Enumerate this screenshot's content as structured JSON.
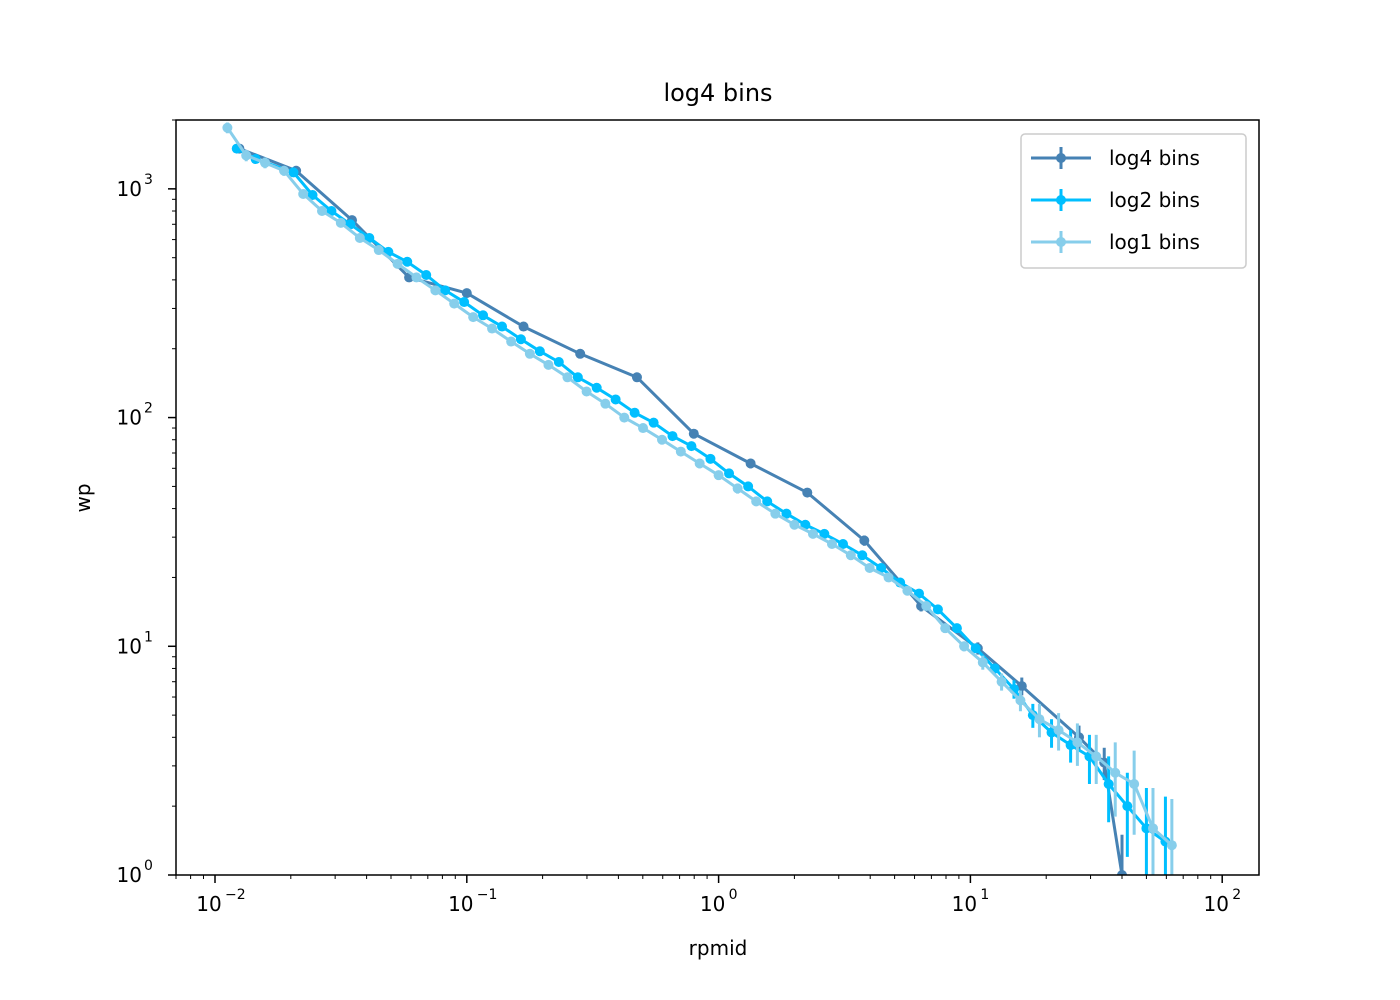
{
  "chart_data": {
    "type": "line",
    "title": "log4 bins",
    "xlabel": "rpmid",
    "ylabel": "wp",
    "xscale": "log",
    "yscale": "log",
    "xlim": [
      0.007,
      140
    ],
    "ylim": [
      1,
      2000
    ],
    "x_ticks": [
      {
        "base": "10",
        "exp": "−2",
        "value": 0.01
      },
      {
        "base": "10",
        "exp": "−1",
        "value": 0.1
      },
      {
        "base": "10",
        "exp": "0",
        "value": 1
      },
      {
        "base": "10",
        "exp": "1",
        "value": 10
      },
      {
        "base": "10",
        "exp": "2",
        "value": 100
      }
    ],
    "y_ticks": [
      {
        "base": "10",
        "exp": "0",
        "value": 1
      },
      {
        "base": "10",
        "exp": "1",
        "value": 10
      },
      {
        "base": "10",
        "exp": "2",
        "value": 100
      },
      {
        "base": "10",
        "exp": "3",
        "value": 1000
      }
    ],
    "grid": false,
    "legend_position": "top-right",
    "series": [
      {
        "name": "log4 bins",
        "color": "#4682b4",
        "x": [
          0.0125,
          0.021,
          0.035,
          0.059,
          0.1,
          0.168,
          0.282,
          0.474,
          0.797,
          1.34,
          2.25,
          3.79,
          6.37,
          10.7,
          16.0,
          27.0,
          34.0,
          40.0
        ],
        "y": [
          1500,
          1200,
          730,
          410,
          350,
          250,
          190,
          150,
          85,
          63,
          47,
          29,
          15,
          9.8,
          6.7,
          4.0,
          3.1,
          1.0
        ],
        "yerr": [
          70,
          60,
          25,
          14,
          10,
          8,
          6,
          5,
          4,
          3,
          2,
          1.5,
          0.8,
          0.6,
          0.6,
          0.5,
          0.5,
          0.5
        ]
      },
      {
        "name": "log2 bins",
        "color": "#00bfff",
        "x": [
          0.0122,
          0.0145,
          0.0205,
          0.0244,
          0.029,
          0.0345,
          0.041,
          0.0488,
          0.058,
          0.069,
          0.082,
          0.0976,
          0.116,
          0.138,
          0.164,
          0.195,
          0.232,
          0.276,
          0.328,
          0.39,
          0.464,
          0.552,
          0.656,
          0.78,
          0.928,
          1.1,
          1.31,
          1.56,
          1.86,
          2.21,
          2.63,
          3.12,
          3.72,
          4.42,
          5.26,
          6.25,
          7.43,
          8.84,
          10.5,
          12.5,
          14.9,
          17.7,
          21.0,
          25.0,
          29.7,
          35.4,
          42.0,
          50.0,
          59.5
        ],
        "y": [
          1500,
          1350,
          1180,
          940,
          800,
          700,
          610,
          530,
          480,
          420,
          360,
          320,
          280,
          250,
          220,
          195,
          175,
          150,
          135,
          120,
          105,
          95,
          83,
          75,
          66,
          57,
          50,
          43,
          38,
          34,
          31,
          28,
          25,
          22,
          19,
          17,
          14.5,
          12.0,
          9.8,
          8.0,
          6.5,
          5.0,
          4.2,
          3.7,
          3.3,
          2.5,
          2.0,
          1.6,
          1.4
        ],
        "yerr": [
          60,
          50,
          40,
          25,
          20,
          18,
          15,
          12,
          10,
          9,
          8,
          7,
          6,
          6,
          5,
          5,
          4,
          4,
          3,
          3,
          3,
          3,
          3,
          2.5,
          2.5,
          2.5,
          2,
          1.5,
          1.2,
          1.0,
          1.0,
          0.8,
          0.7,
          0.6,
          0.5,
          0.5,
          0.5,
          0.4,
          0.4,
          0.4,
          0.6,
          0.6,
          0.6,
          0.6,
          0.8,
          0.8,
          0.8,
          0.8,
          0.8
        ]
      },
      {
        "name": "log1 bins",
        "color": "#87ceeb",
        "x": [
          0.0112,
          0.0133,
          0.0158,
          0.0188,
          0.0224,
          0.0266,
          0.0316,
          0.0376,
          0.0447,
          0.0531,
          0.0631,
          0.075,
          0.0891,
          0.106,
          0.126,
          0.15,
          0.178,
          0.211,
          0.251,
          0.299,
          0.355,
          0.422,
          0.501,
          0.596,
          0.708,
          0.841,
          1.0,
          1.19,
          1.41,
          1.68,
          2.0,
          2.37,
          2.82,
          3.35,
          3.98,
          4.73,
          5.62,
          6.68,
          7.94,
          9.44,
          11.2,
          13.3,
          15.8,
          18.8,
          22.4,
          26.6,
          31.6,
          37.6,
          44.7,
          53.1,
          63.1
        ],
        "y": [
          1850,
          1400,
          1300,
          1200,
          950,
          800,
          710,
          610,
          540,
          470,
          410,
          360,
          315,
          275,
          245,
          215,
          190,
          170,
          150,
          130,
          115,
          100,
          90,
          80,
          71,
          63,
          56,
          49,
          43,
          38,
          34,
          31,
          28,
          25,
          22,
          20,
          17.5,
          15,
          12,
          10,
          8.5,
          7.0,
          5.8,
          4.8,
          4.3,
          3.8,
          3.3,
          2.8,
          2.5,
          1.6,
          1.35
        ],
        "yerr": [
          100,
          80,
          70,
          60,
          30,
          20,
          18,
          15,
          12,
          10,
          9,
          8,
          7,
          6,
          6,
          5,
          5,
          4,
          4,
          3,
          3,
          3,
          3,
          3,
          3,
          3,
          2.5,
          2.5,
          2,
          1.5,
          1.2,
          1.0,
          1.0,
          0.8,
          0.7,
          0.6,
          0.6,
          0.5,
          0.5,
          0.5,
          0.6,
          0.6,
          0.6,
          0.8,
          0.8,
          0.8,
          0.8,
          1.0,
          1.0,
          0.8,
          0.8
        ]
      }
    ]
  }
}
